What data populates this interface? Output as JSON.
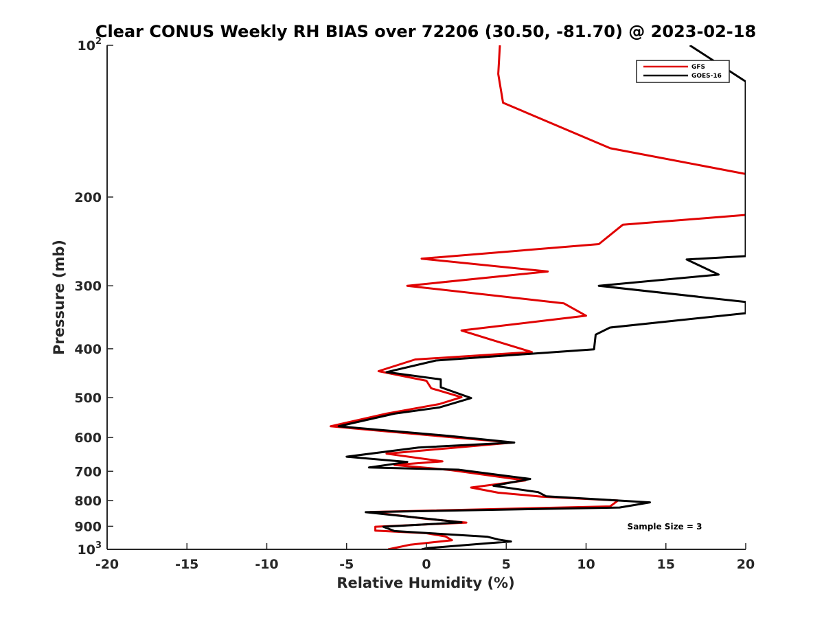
{
  "chart_data": {
    "type": "line",
    "title": "Clear CONUS Weekly RH BIAS over 72206 (30.50, -81.70) @ 2023-02-18",
    "xlabel": "Relative Humidity (%)",
    "ylabel": "Pressure (mb)",
    "xlim": [
      -20,
      20
    ],
    "ylim": [
      100,
      1000
    ],
    "y_scale": "log",
    "y_reversed": true,
    "x_ticks": [
      -20,
      -15,
      -10,
      -5,
      0,
      5,
      10,
      15,
      20
    ],
    "x_tick_labels": [
      "-20",
      "-15",
      "-10",
      "-5",
      "0",
      "5",
      "10",
      "15",
      "20"
    ],
    "y_ticks": [
      100,
      200,
      300,
      400,
      500,
      600,
      700,
      800,
      900,
      1000
    ],
    "y_tick_labels": [
      {
        "base": "10",
        "exp": "2"
      },
      {
        "base": "200",
        "exp": ""
      },
      {
        "base": "300",
        "exp": ""
      },
      {
        "base": "400",
        "exp": ""
      },
      {
        "base": "500",
        "exp": ""
      },
      {
        "base": "600",
        "exp": ""
      },
      {
        "base": "700",
        "exp": ""
      },
      {
        "base": "800",
        "exp": ""
      },
      {
        "base": "900",
        "exp": ""
      },
      {
        "base": "10",
        "exp": "3"
      }
    ],
    "grid": false,
    "legend_position": "top-right",
    "annotation": "Sample Size = 3",
    "series": [
      {
        "name": "GFS",
        "color": "#e00000",
        "points": [
          [
            4.6,
            100
          ],
          [
            4.5,
            114
          ],
          [
            4.8,
            130
          ],
          [
            11.5,
            160
          ],
          [
            20,
            180
          ],
          [
            20,
            217
          ],
          [
            12.3,
            227
          ],
          [
            10.8,
            248
          ],
          [
            -0.3,
            265
          ],
          [
            7.6,
            281
          ],
          [
            -1.2,
            300
          ],
          [
            8.6,
            325
          ],
          [
            10,
            344
          ],
          [
            2.2,
            368
          ],
          [
            4.2,
            385
          ],
          [
            6.6,
            406
          ],
          [
            -0.7,
            420
          ],
          [
            -3,
            443
          ],
          [
            0,
            463
          ],
          [
            0.3,
            479
          ],
          [
            2.2,
            499
          ],
          [
            0.8,
            515
          ],
          [
            -2.5,
            538
          ],
          [
            -6,
            570
          ],
          [
            1.5,
            599
          ],
          [
            5.4,
            614
          ],
          [
            -2.5,
            646
          ],
          [
            1,
            669
          ],
          [
            -2,
            680
          ],
          [
            1.5,
            696
          ],
          [
            6.2,
            730
          ],
          [
            2.8,
            754
          ],
          [
            4.5,
            772
          ],
          [
            7.2,
            786
          ],
          [
            12,
            800
          ],
          [
            11.5,
            822
          ],
          [
            -3.5,
            843
          ],
          [
            0,
            870
          ],
          [
            2.5,
            885
          ],
          [
            -3.2,
            902
          ],
          [
            -3.2,
            918
          ],
          [
            0,
            929
          ],
          [
            1.2,
            943
          ],
          [
            1.6,
            959
          ],
          [
            -1,
            979
          ],
          [
            -2.4,
            1000
          ]
        ]
      },
      {
        "name": "GOES-16",
        "color": "#000000",
        "points": [
          [
            16.5,
            100
          ],
          [
            20,
            118
          ],
          [
            20,
            262
          ],
          [
            16.3,
            266
          ],
          [
            18.3,
            285
          ],
          [
            10.8,
            300
          ],
          [
            20,
            323
          ],
          [
            20,
            340
          ],
          [
            11.5,
            363
          ],
          [
            10.6,
            375
          ],
          [
            10.5,
            401
          ],
          [
            0.6,
            422
          ],
          [
            -2.5,
            445
          ],
          [
            0.9,
            460
          ],
          [
            0.9,
            477
          ],
          [
            2.8,
            501
          ],
          [
            0.8,
            523
          ],
          [
            -2,
            538
          ],
          [
            -5.5,
            570
          ],
          [
            1.5,
            596
          ],
          [
            5.5,
            614
          ],
          [
            -0.5,
            628
          ],
          [
            -5,
            655
          ],
          [
            -1.2,
            671
          ],
          [
            -3.6,
            688
          ],
          [
            2,
            695
          ],
          [
            6.5,
            725
          ],
          [
            4.2,
            748
          ],
          [
            7,
            770
          ],
          [
            7.5,
            785
          ],
          [
            14,
            807
          ],
          [
            12.1,
            826
          ],
          [
            -3.8,
            844
          ],
          [
            0,
            869
          ],
          [
            2.2,
            884
          ],
          [
            -2.7,
            902
          ],
          [
            -2,
            920
          ],
          [
            3.8,
            944
          ],
          [
            4.5,
            956
          ],
          [
            5.3,
            965
          ],
          [
            4,
            972
          ],
          [
            0,
            995
          ],
          [
            -0.3,
            1000
          ]
        ]
      }
    ]
  }
}
